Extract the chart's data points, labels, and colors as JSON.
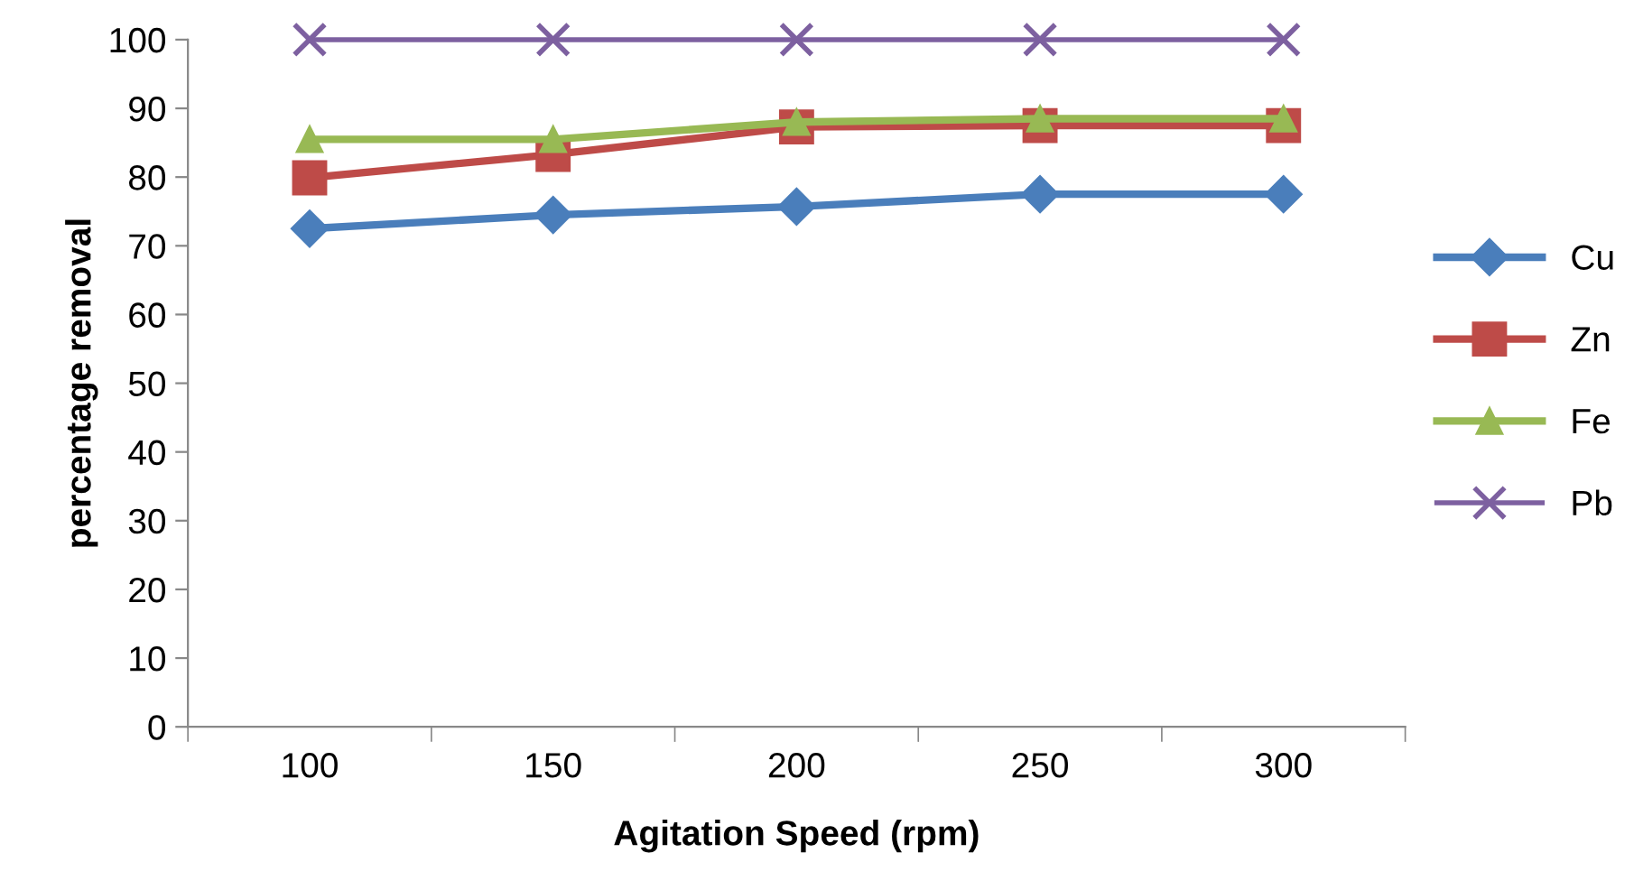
{
  "chart_data": {
    "type": "line",
    "xlabel": "Agitation Speed (rpm)",
    "ylabel": "percentage removal",
    "categories": [
      "100",
      "150",
      "200",
      "250",
      "300"
    ],
    "series": [
      {
        "name": "Cu",
        "color": "#4a7ebb",
        "marker": "diamond",
        "values": [
          72.5,
          74.5,
          75.7,
          77.5,
          77.5
        ]
      },
      {
        "name": "Zn",
        "color": "#be4b48",
        "marker": "square",
        "values": [
          79.9,
          83.3,
          87.3,
          87.5,
          87.5
        ]
      },
      {
        "name": "Fe",
        "color": "#98b954",
        "marker": "triangle",
        "values": [
          85.5,
          85.5,
          88.0,
          88.5,
          88.5
        ]
      },
      {
        "name": "Pb",
        "color": "#7d60a0",
        "marker": "cross",
        "values": [
          100,
          100,
          100,
          100,
          100
        ]
      }
    ],
    "ylim": [
      0,
      100
    ],
    "yticks": [
      0,
      10,
      20,
      30,
      40,
      50,
      60,
      70,
      80,
      90,
      100
    ],
    "grid": false,
    "legend": "right"
  }
}
